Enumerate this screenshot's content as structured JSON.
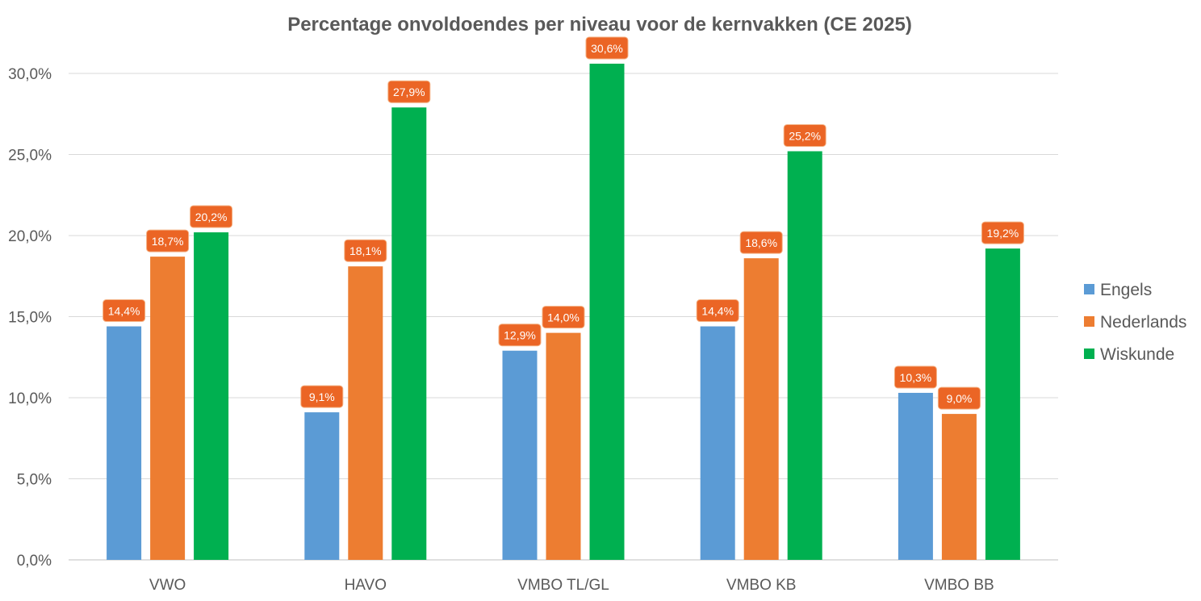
{
  "chart_data": {
    "type": "bar",
    "title": "Percentage onvoldoendes per niveau voor de kernvakken (CE 2025)",
    "xlabel": "",
    "ylabel": "",
    "categories": [
      "VWO",
      "HAVO",
      "VMBO TL/GL",
      "VMBO KB",
      "VMBO BB"
    ],
    "series": [
      {
        "name": "Engels",
        "color": "#5B9BD5",
        "values": [
          14.4,
          9.1,
          12.9,
          14.4,
          10.3
        ],
        "labels": [
          "14,4%",
          "9,1%",
          "12,9%",
          "14,4%",
          "10,3%"
        ]
      },
      {
        "name": "Nederlands",
        "color": "#ED7D31",
        "values": [
          18.7,
          18.1,
          14.0,
          18.6,
          9.0
        ],
        "labels": [
          "18,7%",
          "18,1%",
          "14,0%",
          "18,6%",
          "9,0%"
        ]
      },
      {
        "name": "Wiskunde",
        "color": "#00B050",
        "values": [
          20.2,
          27.9,
          30.6,
          25.2,
          19.2
        ],
        "labels": [
          "20,2%",
          "27,9%",
          "30,6%",
          "25,2%",
          "19,2%"
        ]
      }
    ],
    "yticks": [
      0,
      5,
      10,
      15,
      20,
      25,
      30
    ],
    "ytick_labels": [
      "0,0%",
      "5,0%",
      "10,0%",
      "15,0%",
      "20,0%",
      "25,0%",
      "30,0%"
    ],
    "ylim": [
      0,
      30
    ],
    "grid": true,
    "legend_position": "right",
    "label_box_color": "#EB6525",
    "title_color": "#595959",
    "axis_text_color": "#595959"
  }
}
